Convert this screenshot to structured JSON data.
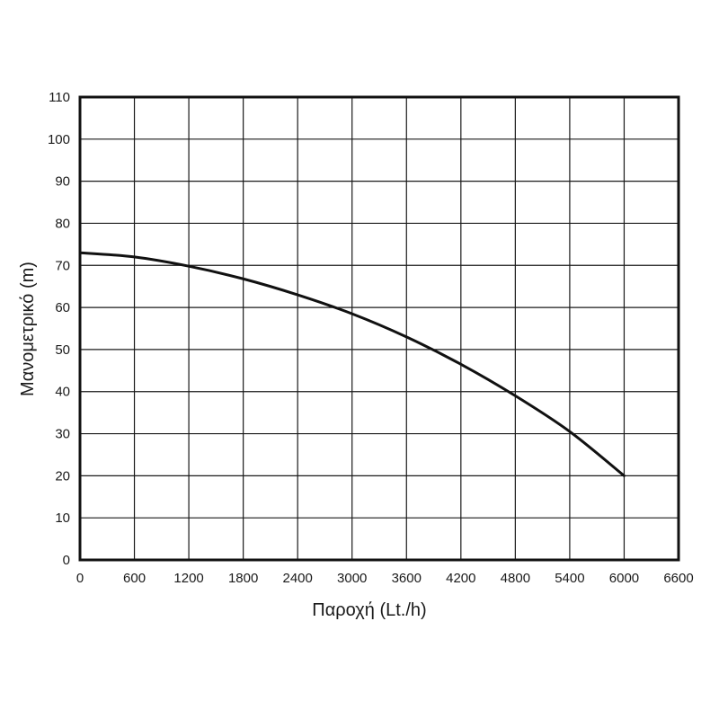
{
  "chart_data": {
    "type": "line",
    "title": "",
    "xlabel": "Παροχή (Lt./h)",
    "ylabel": "Μανομετρικό  (m)",
    "xlim": [
      0,
      6600
    ],
    "ylim": [
      0,
      110
    ],
    "x_ticks": [
      "0",
      "600",
      "1200",
      "1800",
      "2400",
      "3000",
      "3600",
      "4200",
      "4800",
      "5400",
      "6000",
      "6600"
    ],
    "y_ticks": [
      "0",
      "10",
      "20",
      "30",
      "40",
      "50",
      "60",
      "70",
      "80",
      "90",
      "100",
      "110"
    ],
    "grid": true,
    "legend": "none",
    "series": [
      {
        "x": [
          0,
          600,
          1200,
          1800,
          2400,
          3000,
          3600,
          4200,
          4800,
          5400,
          6000
        ],
        "y": [
          73,
          72,
          69.8,
          66.8,
          63,
          58.5,
          53,
          46.5,
          39,
          30.5,
          20
        ],
        "color": "#111111"
      }
    ]
  }
}
